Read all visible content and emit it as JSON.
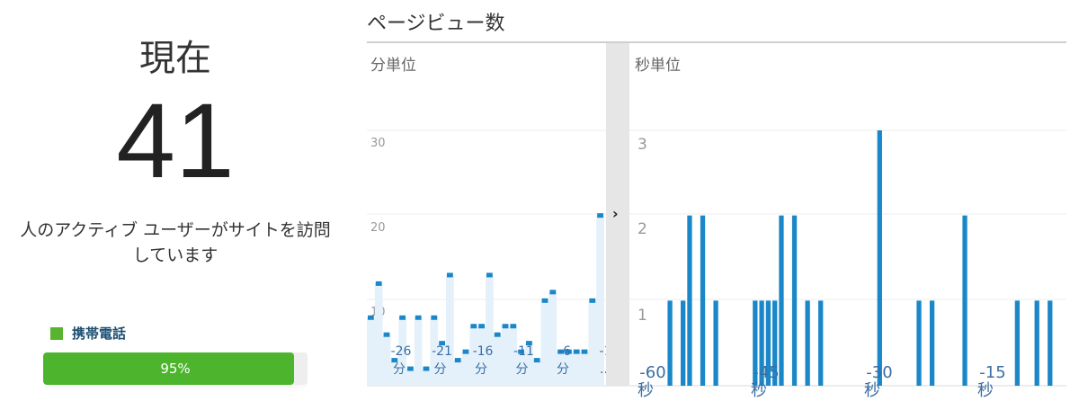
{
  "summary": {
    "now_label": "現在",
    "active_count": "41",
    "description_line1": "人のアクティブ ユーザーがサイトを訪問",
    "description_line2": "しています"
  },
  "device": {
    "legend_label": "携帯電話",
    "share_label": "95%",
    "share_value": 0.95,
    "color": "#4cb52d"
  },
  "pageviews": {
    "title": "ページビュー数",
    "expand_icon": "chevron-right-icon"
  },
  "chart_data": [
    {
      "type": "bar",
      "panel_title": "分単位",
      "ylim": [
        0,
        30
      ],
      "y_ticks": [
        "10",
        "20",
        "30"
      ],
      "x_labels": [
        {
          "n": "-26",
          "u": "分"
        },
        {
          "n": "-21",
          "u": "分"
        },
        {
          "n": "-16",
          "u": "分"
        },
        {
          "n": "-11",
          "u": "分"
        },
        {
          "n": "-6",
          "u": "分"
        },
        {
          "n": "-1",
          "u": ".."
        }
      ],
      "values": [
        8,
        12,
        6,
        3,
        8,
        2,
        8,
        2,
        8,
        5,
        13,
        3,
        4,
        7,
        7,
        13,
        6,
        7,
        7,
        4,
        5,
        3,
        10,
        11,
        4,
        4,
        4,
        4,
        10,
        20
      ],
      "color": "#1a87c9",
      "fill_color": "#e5f1fa"
    },
    {
      "type": "bar",
      "panel_title": "秒単位",
      "ylim": [
        0,
        3
      ],
      "y_ticks": [
        "1",
        "2",
        "3"
      ],
      "x_labels": [
        {
          "n": "-60",
          "u": "秒"
        },
        {
          "n": "-45",
          "u": "秒"
        },
        {
          "n": "-30",
          "u": "秒"
        },
        {
          "n": "-15",
          "u": "秒"
        }
      ],
      "values": [
        0,
        0,
        0,
        0,
        0,
        1,
        0,
        1,
        2,
        0,
        2,
        0,
        1,
        0,
        0,
        0,
        0,
        0,
        1,
        1,
        1,
        1,
        2,
        0,
        2,
        0,
        1,
        0,
        1,
        0,
        0,
        0,
        0,
        0,
        0,
        0,
        0,
        3,
        0,
        0,
        0,
        0,
        0,
        1,
        0,
        1,
        0,
        0,
        0,
        0,
        2,
        0,
        0,
        0,
        0,
        0,
        0,
        0,
        1,
        0,
        0,
        1,
        0,
        1,
        0,
        0
      ],
      "color": "#1a87c9"
    }
  ]
}
